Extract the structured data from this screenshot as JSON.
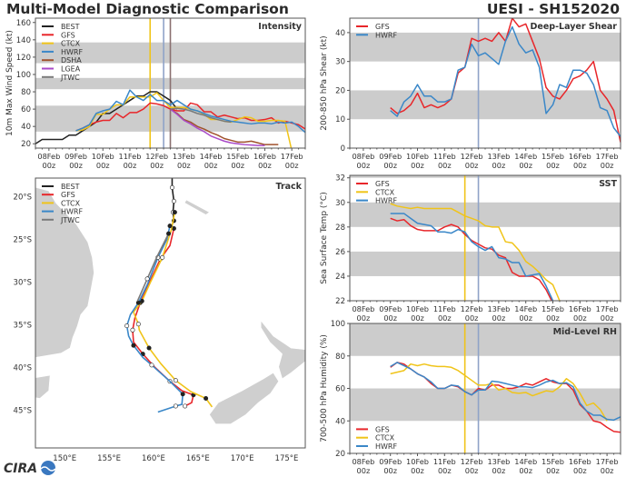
{
  "header": {
    "title": "Multi-Model Diagnostic Comparison",
    "storm": "UESI - SH152020"
  },
  "logo": {
    "text": "CIRA"
  },
  "colors": {
    "BEST": "#222222",
    "GFS": "#e8262a",
    "CTCX": "#f0c419",
    "HWRF": "#3a87c8",
    "DSHA": "#a0522d",
    "LGEA": "#a94ac9",
    "JTWC": "#7a7a7a",
    "band": "#cccccc"
  },
  "chart_data": [
    {
      "id": "intensity",
      "type": "line",
      "title": "Intensity",
      "ylabel": "10m Max Wind Speed (kt)",
      "ylim": [
        15,
        165
      ],
      "yticks": [
        20,
        40,
        60,
        80,
        100,
        120,
        140,
        160
      ],
      "xlim": [
        "07Feb 12z",
        "17Feb 12z"
      ],
      "xticks": [
        [
          "08Feb",
          "00z"
        ],
        [
          "09Feb",
          "00z"
        ],
        [
          "10Feb",
          "00z"
        ],
        [
          "11Feb",
          "00z"
        ],
        [
          "12Feb",
          "00z"
        ],
        [
          "13Feb",
          "00z"
        ],
        [
          "14Feb",
          "00z"
        ],
        [
          "15Feb",
          "00z"
        ],
        [
          "16Feb",
          "00z"
        ],
        [
          "17Feb",
          "00z"
        ]
      ],
      "bands": [
        [
          34,
          64
        ],
        [
          83,
          96
        ],
        [
          113,
          137
        ]
      ],
      "vlines": [
        {
          "time": "11Feb 18z",
          "color": "#f0c419"
        },
        {
          "time": "12Feb 06z",
          "color": "#8fa3c8"
        },
        {
          "time": "12Feb 12z",
          "color": "#8a7070"
        }
      ],
      "legend": "top-left",
      "interval_hours": 6,
      "series": [
        {
          "name": "BEST",
          "start": "07Feb 12z",
          "values": [
            20,
            25,
            25,
            25,
            25,
            30,
            30,
            35,
            40,
            45,
            55,
            55,
            60,
            65,
            70,
            75,
            75,
            80,
            80,
            75,
            70,
            60
          ]
        },
        {
          "name": "GFS",
          "start": "09Feb 00z",
          "values": [
            35,
            38,
            42,
            45,
            47,
            47,
            55,
            50,
            56,
            56,
            60,
            67,
            66,
            64,
            60,
            58,
            58,
            67,
            65,
            57,
            57,
            51,
            53,
            51,
            49,
            50,
            47,
            47,
            48,
            50,
            44,
            46,
            44,
            42,
            37
          ]
        },
        {
          "name": "CTCX",
          "start": "09Feb 00z",
          "values": [
            35,
            36,
            40,
            54,
            54,
            60,
            65,
            65,
            74,
            74,
            74,
            74,
            79,
            70,
            62,
            62,
            62,
            60,
            58,
            54,
            48,
            48,
            46,
            45,
            48,
            51,
            50,
            46,
            46,
            47,
            47,
            46,
            12
          ]
        },
        {
          "name": "HWRF",
          "start": "09Feb 00z",
          "values": [
            35,
            38,
            42,
            55,
            58,
            60,
            69,
            65,
            82,
            74,
            70,
            77,
            70,
            70,
            65,
            70,
            65,
            60,
            58,
            55,
            52,
            50,
            48,
            46,
            45,
            44,
            43,
            44,
            44,
            43,
            45,
            44,
            45,
            40,
            33
          ]
        },
        {
          "name": "DSHA",
          "start": "12Feb 12z",
          "values": [
            60,
            55,
            48,
            45,
            40,
            37,
            33,
            30,
            26,
            24,
            22,
            22,
            23,
            21,
            19,
            19,
            19
          ]
        },
        {
          "name": "LGEA",
          "start": "12Feb 12z",
          "values": [
            60,
            54,
            47,
            43,
            38,
            34,
            29,
            26,
            23,
            21,
            20,
            19,
            18.5,
            18,
            18
          ]
        },
        {
          "name": "JTWC",
          "start": "12Feb 12z",
          "values": [
            60,
            61,
            60,
            58,
            55,
            53,
            50,
            48,
            46,
            45
          ]
        }
      ]
    },
    {
      "id": "shear",
      "type": "line",
      "title": "Deep-Layer Shear",
      "ylabel": "200-850 hPa Shear (kt)",
      "ylim": [
        0,
        45
      ],
      "yticks": [
        0,
        10,
        20,
        30,
        40
      ],
      "xlim": [
        "07Feb 12z",
        "17Feb 12z"
      ],
      "xticks": [
        [
          "08Feb",
          "00z"
        ],
        [
          "09Feb",
          "00z"
        ],
        [
          "10Feb",
          "00z"
        ],
        [
          "11Feb",
          "00z"
        ],
        [
          "12Feb",
          "00z"
        ],
        [
          "13Feb",
          "00z"
        ],
        [
          "14Feb",
          "00z"
        ],
        [
          "15Feb",
          "00z"
        ],
        [
          "16Feb",
          "00z"
        ],
        [
          "17Feb",
          "00z"
        ]
      ],
      "bands": [
        [
          10,
          20
        ],
        [
          30,
          40
        ]
      ],
      "vlines": [
        {
          "time": "12Feb 06z",
          "color": "#8fa3c8"
        }
      ],
      "legend": "top-left",
      "interval_hours": 6,
      "series": [
        {
          "name": "GFS",
          "start": "09Feb 00z",
          "values": [
            14,
            12,
            13,
            15,
            19,
            14,
            15,
            14,
            15,
            17,
            26,
            28,
            38,
            37,
            38,
            37,
            40,
            37,
            45,
            42,
            43,
            37,
            31,
            21,
            18,
            17,
            20,
            24,
            25,
            27,
            30,
            20,
            17,
            13,
            2
          ]
        },
        {
          "name": "HWRF",
          "start": "09Feb 00z",
          "values": [
            13,
            11,
            16,
            18,
            22,
            18,
            18,
            16,
            16,
            17,
            27,
            28,
            36,
            32,
            33,
            31,
            29,
            37,
            42,
            36,
            33,
            34,
            28,
            12,
            15,
            22,
            21,
            27,
            27,
            26,
            22,
            14,
            13,
            7,
            4
          ]
        }
      ]
    },
    {
      "id": "sst",
      "type": "line",
      "title": "SST",
      "ylabel": "Sea Surface Temp (°C)",
      "ylim": [
        22,
        32.2
      ],
      "yticks": [
        22,
        24,
        26,
        28,
        30,
        32
      ],
      "xlim": [
        "07Feb 12z",
        "17Feb 12z"
      ],
      "xticks": [
        [
          "08Feb",
          "00z"
        ],
        [
          "09Feb",
          "00z"
        ],
        [
          "10Feb",
          "00z"
        ],
        [
          "11Feb",
          "00z"
        ],
        [
          "12Feb",
          "00z"
        ],
        [
          "13Feb",
          "00z"
        ],
        [
          "14Feb",
          "00z"
        ],
        [
          "15Feb",
          "00z"
        ],
        [
          "16Feb",
          "00z"
        ],
        [
          "17Feb",
          "00z"
        ]
      ],
      "bands": [
        [
          24,
          26
        ],
        [
          28,
          30
        ],
        [
          32,
          32.2
        ]
      ],
      "vlines": [
        {
          "time": "11Feb 18z",
          "color": "#f0c419"
        },
        {
          "time": "12Feb 06z",
          "color": "#8fa3c8"
        }
      ],
      "legend": "top-left",
      "interval_hours": 6,
      "series": [
        {
          "name": "GFS",
          "start": "09Feb 00z",
          "values": [
            28.7,
            28.5,
            28.6,
            28.1,
            27.8,
            27.7,
            27.7,
            27.7,
            28.0,
            28.2,
            28.0,
            27.4,
            26.9,
            26.6,
            26.3,
            26.2,
            25.7,
            25.5,
            24.3,
            24.0,
            24.0,
            24.0,
            23.7,
            22.9,
            21.8
          ]
        },
        {
          "name": "CTCX",
          "start": "09Feb 00z",
          "values": [
            29.9,
            29.7,
            29.6,
            29.5,
            29.6,
            29.5,
            29.5,
            29.5,
            29.5,
            29.5,
            29.2,
            28.9,
            28.7,
            28.5,
            28.1,
            28.0,
            28.0,
            26.8,
            26.7,
            26.1,
            25.2,
            24.8,
            24.3,
            23.7,
            23.3,
            22.0
          ]
        },
        {
          "name": "HWRF",
          "start": "09Feb 00z",
          "values": [
            29.1,
            29.1,
            29.1,
            28.7,
            28.3,
            28.2,
            28.1,
            27.6,
            27.6,
            27.5,
            27.8,
            27.6,
            26.8,
            26.4,
            26.1,
            26.4,
            25.5,
            25.4,
            25.1,
            25.1,
            24.0,
            24.1,
            24.2,
            23.2,
            22.0
          ]
        }
      ]
    },
    {
      "id": "rh",
      "type": "line",
      "title": "Mid-Level RH",
      "ylabel": "700-500 hPa Humidity (%)",
      "ylim": [
        20,
        100
      ],
      "yticks": [
        20,
        40,
        60,
        80,
        100
      ],
      "xlim": [
        "07Feb 12z",
        "17Feb 12z"
      ],
      "xticks": [
        [
          "08Feb",
          "00z"
        ],
        [
          "09Feb",
          "00z"
        ],
        [
          "10Feb",
          "00z"
        ],
        [
          "11Feb",
          "00z"
        ],
        [
          "12Feb",
          "00z"
        ],
        [
          "13Feb",
          "00z"
        ],
        [
          "14Feb",
          "00z"
        ],
        [
          "15Feb",
          "00z"
        ],
        [
          "16Feb",
          "00z"
        ],
        [
          "17Feb",
          "00z"
        ]
      ],
      "bands": [
        [
          40,
          60
        ],
        [
          80,
          100
        ]
      ],
      "vlines": [
        {
          "time": "11Feb 18z",
          "color": "#f0c419"
        },
        {
          "time": "12Feb 06z",
          "color": "#8fa3c8"
        }
      ],
      "legend": "bottom-left",
      "interval_hours": 6,
      "series": [
        {
          "name": "GFS",
          "start": "09Feb 00z",
          "values": [
            73,
            76,
            75,
            72,
            69,
            67,
            63,
            60,
            60,
            62,
            61,
            58,
            56,
            60,
            59,
            62,
            62,
            60,
            60,
            61,
            63,
            62,
            64,
            66,
            64,
            63,
            63,
            59,
            50,
            46,
            40,
            39,
            36,
            33.5,
            33
          ]
        },
        {
          "name": "CTCX",
          "start": "09Feb 00z",
          "values": [
            69,
            70,
            71,
            75,
            74,
            75,
            74,
            73.5,
            73.5,
            73,
            71,
            68,
            65,
            62,
            62,
            63,
            59,
            60,
            57.5,
            57,
            57.5,
            55.5,
            57,
            58.5,
            58,
            61,
            66,
            63,
            57,
            49.5,
            51,
            47,
            40
          ]
        },
        {
          "name": "HWRF",
          "start": "09Feb 00z",
          "values": [
            73.5,
            76,
            74,
            72,
            69,
            67,
            64,
            60,
            60,
            62,
            61.5,
            58,
            56,
            59,
            59,
            64.5,
            64,
            63,
            62,
            61,
            61,
            60.5,
            62,
            64,
            65,
            63,
            63.5,
            61,
            51,
            46,
            43.5,
            43.5,
            41,
            40.5,
            42.5
          ]
        }
      ]
    },
    {
      "id": "track",
      "type": "line",
      "title": "Track",
      "xlim": [
        146.7,
        177.1
      ],
      "ylim": [
        -49.4,
        -17.8
      ],
      "xticks": [
        [
          150,
          "150°E"
        ],
        [
          155,
          "155°E"
        ],
        [
          160,
          "160°E"
        ],
        [
          165,
          "165°E"
        ],
        [
          170,
          "170°E"
        ],
        [
          175,
          "175°E"
        ]
      ],
      "yticks": [
        [
          -20,
          "20°S"
        ],
        [
          -25,
          "25°S"
        ],
        [
          -30,
          "30°S"
        ],
        [
          -35,
          "35°S"
        ],
        [
          -40,
          "40°S"
        ],
        [
          -45,
          "45°S"
        ]
      ],
      "legend": "top-left",
      "series": [
        {
          "name": "BEST",
          "lon": [
            162.1,
            162.1,
            162.3,
            162.2,
            162.3
          ],
          "lat": [
            -17.8,
            -18.9,
            -20.5,
            -21.8,
            -22.8
          ]
        },
        {
          "name": "GFS",
          "lon": [
            162.3,
            161.85,
            160.76,
            159.6,
            158.5,
            157.9,
            157.65,
            157.75,
            158.8,
            160.1,
            161.85,
            163.2,
            164.5,
            164.3,
            163.55
          ],
          "lat": [
            -23.7,
            -25.7,
            -27.3,
            -29.9,
            -32.4,
            -34.2,
            -35.6,
            -37.0,
            -38.4,
            -39.9,
            -41.6,
            -42.7,
            -43.2,
            -44.1,
            -44.5
          ]
        },
        {
          "name": "CTCX",
          "lon": [
            162.4,
            162.0,
            161.0,
            159.7,
            158.7,
            157.75,
            158.3,
            158.4,
            159.5,
            160.8,
            162.5,
            164.2,
            165.9,
            166.6
          ],
          "lat": [
            -21.8,
            -23.9,
            -27.1,
            -29.9,
            -32.2,
            -33.5,
            -34.9,
            -35.6,
            -37.7,
            -39.5,
            -41.5,
            -42.8,
            -43.6,
            -44.6
          ]
        },
        {
          "name": "HWRF",
          "lon": [
            161.85,
            161.5,
            160.5,
            159.3,
            158.3,
            157.4,
            157.0,
            157.2,
            157.75,
            158.8,
            159.8,
            161.85,
            163.3,
            163.2,
            162.5,
            160.5
          ],
          "lat": [
            -23.4,
            -25.0,
            -27.1,
            -30.3,
            -32.4,
            -33.8,
            -35.1,
            -36.3,
            -37.4,
            -38.8,
            -39.7,
            -41.6,
            -43.1,
            -44.3,
            -44.5,
            -45.2
          ]
        },
        {
          "name": "JTWC",
          "lon": [
            161.7,
            160.4,
            159.3,
            158.2
          ],
          "lat": [
            -24.3,
            -27.0,
            -29.6,
            -32.2
          ]
        }
      ]
    }
  ]
}
